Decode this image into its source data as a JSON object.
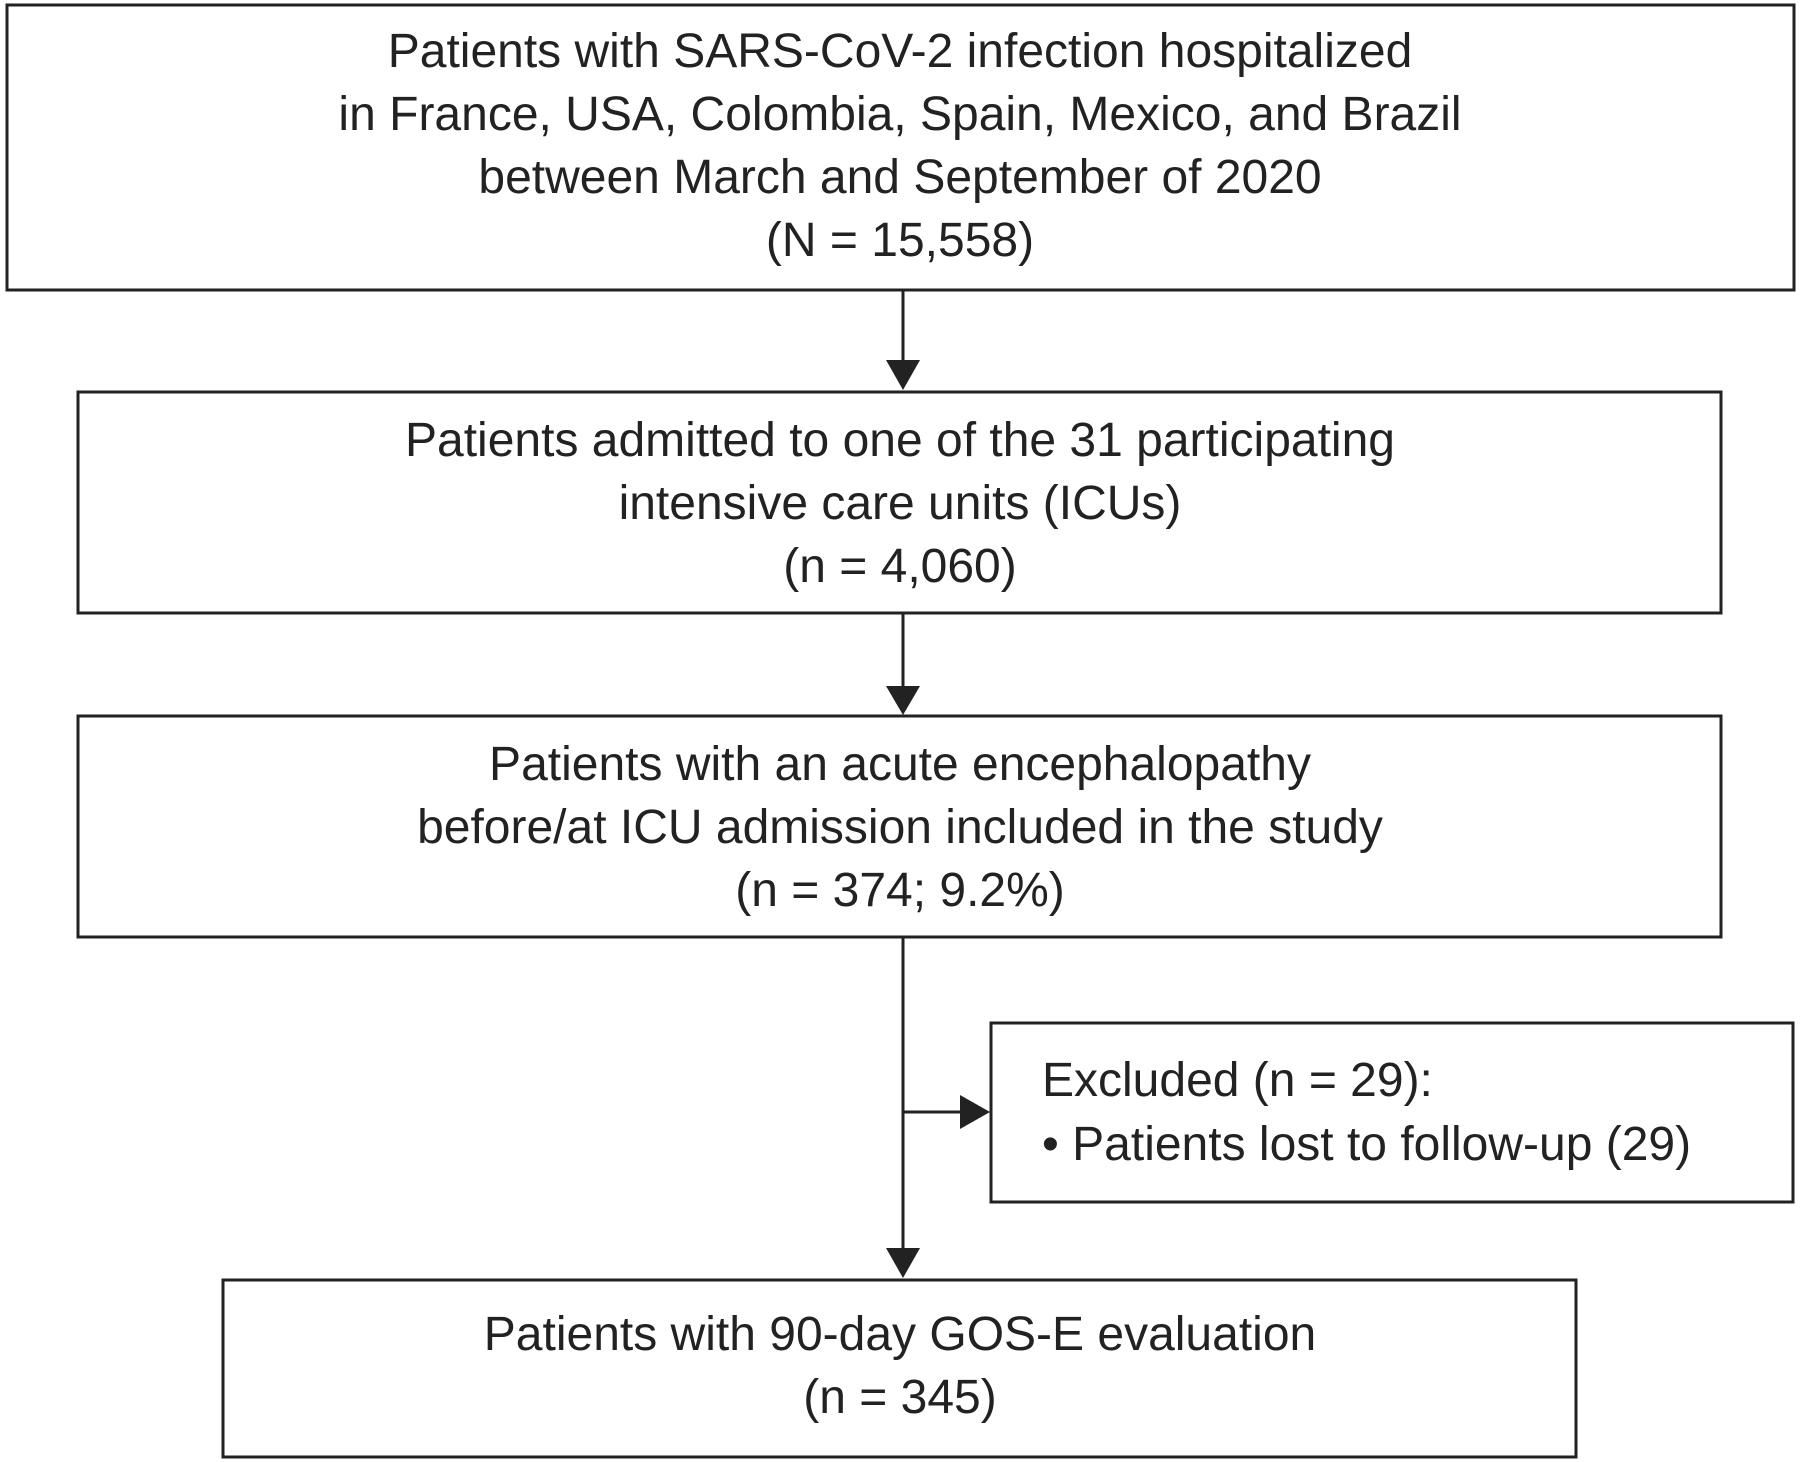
{
  "flowchart": {
    "boxes": [
      {
        "lines": [
          "Patients with SARS-CoV-2 infection hospitalized",
          "in France, USA, Colombia, Spain, Mexico, and Brazil",
          "between March and September of 2020",
          "(N = 15,558)"
        ]
      },
      {
        "lines": [
          "Patients admitted to one of the 31 participating",
          "intensive care units (ICUs)",
          "(n = 4,060)"
        ]
      },
      {
        "lines": [
          "Patients with an acute encephalopathy",
          "before/at ICU admission included in the study",
          "(n = 374; 9.2%)"
        ]
      },
      {
        "lines": [
          "Patients with 90-day GOS-E evaluation",
          "(n = 345)"
        ]
      }
    ],
    "excluded": {
      "title": "Excluded (n = 29):",
      "items": [
        "• Patients lost to follow-up (29)"
      ]
    }
  }
}
